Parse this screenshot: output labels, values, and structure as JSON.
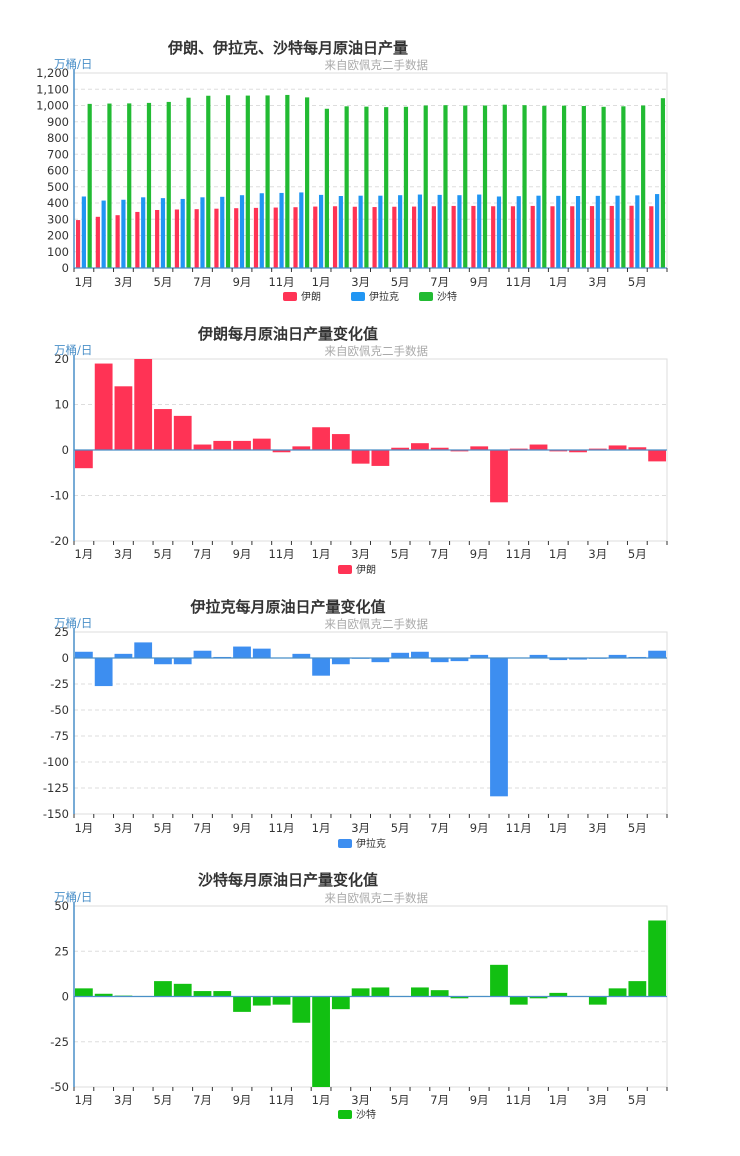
{
  "chart_data": [
    {
      "type": "bar",
      "title": "伊朗、伊拉克、沙特每月原油日产量",
      "subtitle": "来自欧佩克二手数据",
      "unit_label": "万桶/日",
      "ylim": [
        0,
        1200
      ],
      "yticks": [
        "0",
        "100",
        "200",
        "300",
        "400",
        "500",
        "600",
        "700",
        "800",
        "900",
        "1,000",
        "1,100",
        "1,200"
      ],
      "xtick_labels": [
        "1月",
        "3月",
        "5月",
        "7月",
        "9月",
        "11月",
        "1月",
        "3月",
        "5月",
        "7月",
        "9月",
        "11月",
        "1月",
        "3月",
        "5月"
      ],
      "legend_position": "bottom",
      "grid": true,
      "series": [
        {
          "name": "伊朗",
          "color": "#ff3355",
          "values": [
            295,
            315,
            325,
            345,
            357,
            360,
            362,
            365,
            368,
            370,
            372,
            374,
            378,
            380,
            377,
            375,
            377,
            378,
            380,
            382,
            382,
            380,
            380,
            382,
            380,
            380,
            381,
            382,
            383,
            380
          ]
        },
        {
          "name": "伊拉克",
          "color": "#2196f3",
          "values": [
            440,
            415,
            420,
            435,
            430,
            425,
            435,
            438,
            448,
            460,
            462,
            465,
            450,
            443,
            445,
            445,
            448,
            452,
            450,
            448,
            452,
            440,
            442,
            445,
            444,
            443,
            444,
            445,
            447,
            455
          ]
        },
        {
          "name": "沙特",
          "color": "#22bb33",
          "values": [
            1010,
            1012,
            1013,
            1016,
            1022,
            1048,
            1060,
            1063,
            1061,
            1062,
            1065,
            1050,
            980,
            995,
            993,
            990,
            992,
            1000,
            1002,
            1000,
            1000,
            1005,
            1002,
            998,
            999,
            997,
            992,
            995,
            1000,
            1045
          ]
        }
      ]
    },
    {
      "type": "bar",
      "title": "伊朗每月原油日产量变化值",
      "subtitle": "来自欧佩克二手数据",
      "unit_label": "万桶/日",
      "ylim": [
        -20,
        20
      ],
      "yticks": [
        "-20",
        "-10",
        "0",
        "10",
        "20"
      ],
      "xtick_labels": [
        "1月",
        "3月",
        "5月",
        "7月",
        "9月",
        "11月",
        "1月",
        "3月",
        "5月",
        "7月",
        "9月",
        "11月",
        "1月",
        "3月",
        "5月"
      ],
      "legend_position": "bottom",
      "grid": true,
      "series": [
        {
          "name": "伊朗",
          "color": "#ff3355",
          "values": [
            -4,
            19,
            14,
            22,
            9,
            7.5,
            1.2,
            2,
            2,
            2.5,
            -0.5,
            0.8,
            5,
            3.5,
            -3,
            -3.5,
            0.5,
            1.5,
            0.5,
            -0.3,
            0.8,
            -11.5,
            0.3,
            1.2,
            -0.3,
            -0.5,
            0.3,
            1,
            0.6,
            -2.5
          ]
        }
      ]
    },
    {
      "type": "bar",
      "title": "伊拉克每月原油日产量变化值",
      "subtitle": "来自欧佩克二手数据",
      "unit_label": "万桶/日",
      "ylim": [
        -150,
        25
      ],
      "yticks": [
        "-150",
        "-125",
        "-100",
        "-75",
        "-50",
        "-25",
        "0",
        "25"
      ],
      "xtick_labels": [
        "1月",
        "3月",
        "5月",
        "7月",
        "9月",
        "11月",
        "1月",
        "3月",
        "5月",
        "7月",
        "9月",
        "11月",
        "1月",
        "3月",
        "5月"
      ],
      "legend_position": "bottom",
      "grid": true,
      "series": [
        {
          "name": "伊拉克",
          "color": "#3d8ef0",
          "values": [
            6,
            -27,
            4,
            15,
            -6,
            -6,
            7,
            1,
            11,
            9,
            0.5,
            4,
            -17,
            -6,
            -0.5,
            -4,
            5,
            6,
            -4,
            -3,
            3,
            -133,
            0.5,
            3,
            -2,
            -1.5,
            -0.5,
            3,
            1,
            7
          ]
        }
      ]
    },
    {
      "type": "bar",
      "title": "沙特每月原油日产量变化值",
      "subtitle": "来自欧佩克二手数据",
      "unit_label": "万桶/日",
      "ylim": [
        -50,
        50
      ],
      "yticks": [
        "-50",
        "-25",
        "0",
        "25",
        "50"
      ],
      "xtick_labels": [
        "1月",
        "3月",
        "5月",
        "7月",
        "9月",
        "11月",
        "1月",
        "3月",
        "5月",
        "7月",
        "9月",
        "11月",
        "1月",
        "3月",
        "5月"
      ],
      "legend_position": "bottom",
      "grid": true,
      "series": [
        {
          "name": "沙特",
          "color": "#12c012",
          "values": [
            4.5,
            1.5,
            0.5,
            0.3,
            8.5,
            7,
            3,
            3,
            -8.5,
            -5,
            -4.5,
            -14.5,
            -53,
            -7,
            4.5,
            5,
            0.3,
            5,
            3.5,
            -1,
            0.3,
            17.5,
            -4.5,
            -1,
            2,
            0.3,
            -4.5,
            4.5,
            8.5,
            42
          ]
        }
      ]
    }
  ]
}
